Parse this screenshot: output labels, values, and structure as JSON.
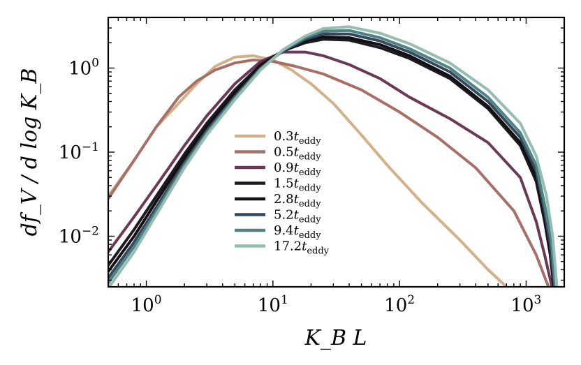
{
  "chart_data": {
    "type": "line",
    "xscale": "log",
    "yscale": "log",
    "xlim": [
      0.5,
      2000
    ],
    "ylim": [
      0.0025,
      4
    ],
    "xlabel": "K_B L",
    "ylabel": "df_V / d log K_B",
    "xticks": [
      {
        "base": "10",
        "exp": "0",
        "value": 1
      },
      {
        "base": "10",
        "exp": "1",
        "value": 10
      },
      {
        "base": "10",
        "exp": "2",
        "value": 100
      },
      {
        "base": "10",
        "exp": "3",
        "value": 1000
      }
    ],
    "yticks": [
      {
        "base": "10",
        "exp": "0",
        "value": 1
      },
      {
        "base": "10",
        "exp": "−1",
        "value": 0.1
      },
      {
        "base": "10",
        "exp": "−2",
        "value": 0.01
      }
    ],
    "legend_position": "center-left",
    "series": [
      {
        "name": "0.3",
        "sub": "eddy",
        "color": "#d2b089",
        "x": [
          0.5,
          0.8,
          1.2,
          1.8,
          2.5,
          3.5,
          5,
          7,
          10,
          14,
          20,
          30,
          50,
          80,
          150,
          300,
          500,
          700
        ],
        "y": [
          0.03,
          0.08,
          0.2,
          0.38,
          0.65,
          1.05,
          1.35,
          1.4,
          1.25,
          0.95,
          0.65,
          0.38,
          0.16,
          0.07,
          0.025,
          0.009,
          0.004,
          0.0025
        ]
      },
      {
        "name": "0.5",
        "sub": "eddy",
        "color": "#a86f67",
        "x": [
          0.5,
          0.8,
          1.2,
          1.8,
          2.5,
          3.5,
          5,
          7,
          10,
          15,
          25,
          50,
          100,
          200,
          400,
          800,
          1200,
          1500
        ],
        "y": [
          0.028,
          0.08,
          0.2,
          0.45,
          0.7,
          0.95,
          1.15,
          1.25,
          1.2,
          1.05,
          0.85,
          0.55,
          0.3,
          0.15,
          0.065,
          0.02,
          0.006,
          0.0025
        ]
      },
      {
        "name": "0.9",
        "sub": "eddy",
        "color": "#6a3a55",
        "x": [
          0.5,
          0.8,
          1.2,
          2,
          3,
          5,
          8,
          12,
          18,
          25,
          40,
          70,
          120,
          250,
          500,
          900,
          1200,
          1400,
          1600
        ],
        "y": [
          0.0065,
          0.017,
          0.04,
          0.12,
          0.27,
          0.65,
          1.2,
          1.55,
          1.55,
          1.4,
          1.1,
          0.75,
          0.45,
          0.25,
          0.13,
          0.05,
          0.015,
          0.006,
          0.0025
        ]
      },
      {
        "name": "1.5",
        "sub": "eddy",
        "color": "#1e1a24",
        "x": [
          0.5,
          0.8,
          1.2,
          2,
          3,
          5,
          8,
          12,
          18,
          25,
          40,
          70,
          120,
          250,
          500,
          900,
          1200,
          1400,
          1550,
          1650
        ],
        "y": [
          0.0045,
          0.012,
          0.03,
          0.095,
          0.22,
          0.55,
          1.1,
          1.6,
          2.0,
          2.2,
          2.15,
          1.75,
          1.3,
          0.75,
          0.33,
          0.12,
          0.045,
          0.015,
          0.006,
          0.0025
        ]
      },
      {
        "name": "2.8",
        "sub": "eddy",
        "color": "#111111",
        "x": [
          0.5,
          0.8,
          1.2,
          2,
          3,
          5,
          8,
          12,
          18,
          25,
          40,
          70,
          120,
          250,
          500,
          900,
          1200,
          1400,
          1550,
          1650
        ],
        "y": [
          0.0038,
          0.01,
          0.026,
          0.085,
          0.2,
          0.5,
          1.05,
          1.6,
          2.1,
          2.35,
          2.3,
          1.9,
          1.4,
          0.8,
          0.35,
          0.13,
          0.05,
          0.017,
          0.007,
          0.0025
        ]
      },
      {
        "name": "5.2",
        "sub": "eddy",
        "color": "#34485e",
        "x": [
          0.5,
          0.8,
          1.2,
          2,
          3,
          5,
          8,
          12,
          18,
          25,
          40,
          70,
          120,
          250,
          500,
          900,
          1200,
          1400,
          1550,
          1680
        ],
        "y": [
          0.0032,
          0.0085,
          0.022,
          0.075,
          0.18,
          0.46,
          1.0,
          1.6,
          2.2,
          2.55,
          2.55,
          2.1,
          1.55,
          0.9,
          0.4,
          0.15,
          0.06,
          0.02,
          0.008,
          0.0025
        ]
      },
      {
        "name": "9.4",
        "sub": "eddy",
        "color": "#4f8383",
        "x": [
          0.5,
          0.8,
          1.2,
          2,
          3,
          5,
          8,
          12,
          18,
          25,
          40,
          70,
          120,
          250,
          500,
          900,
          1200,
          1400,
          1580,
          1700
        ],
        "y": [
          0.0028,
          0.0075,
          0.02,
          0.07,
          0.17,
          0.44,
          0.98,
          1.62,
          2.3,
          2.75,
          2.8,
          2.3,
          1.7,
          1.0,
          0.45,
          0.17,
          0.07,
          0.024,
          0.009,
          0.0025
        ]
      },
      {
        "name": "17.2",
        "sub": "eddy",
        "color": "#97bcb0",
        "x": [
          0.5,
          0.8,
          1.2,
          2,
          3,
          5,
          8,
          12,
          18,
          25,
          40,
          70,
          120,
          250,
          500,
          900,
          1200,
          1450,
          1620,
          1750
        ],
        "y": [
          0.0024,
          0.0065,
          0.018,
          0.065,
          0.16,
          0.42,
          0.95,
          1.65,
          2.4,
          2.95,
          3.1,
          2.6,
          1.95,
          1.15,
          0.55,
          0.22,
          0.09,
          0.03,
          0.01,
          0.0025
        ]
      }
    ]
  }
}
